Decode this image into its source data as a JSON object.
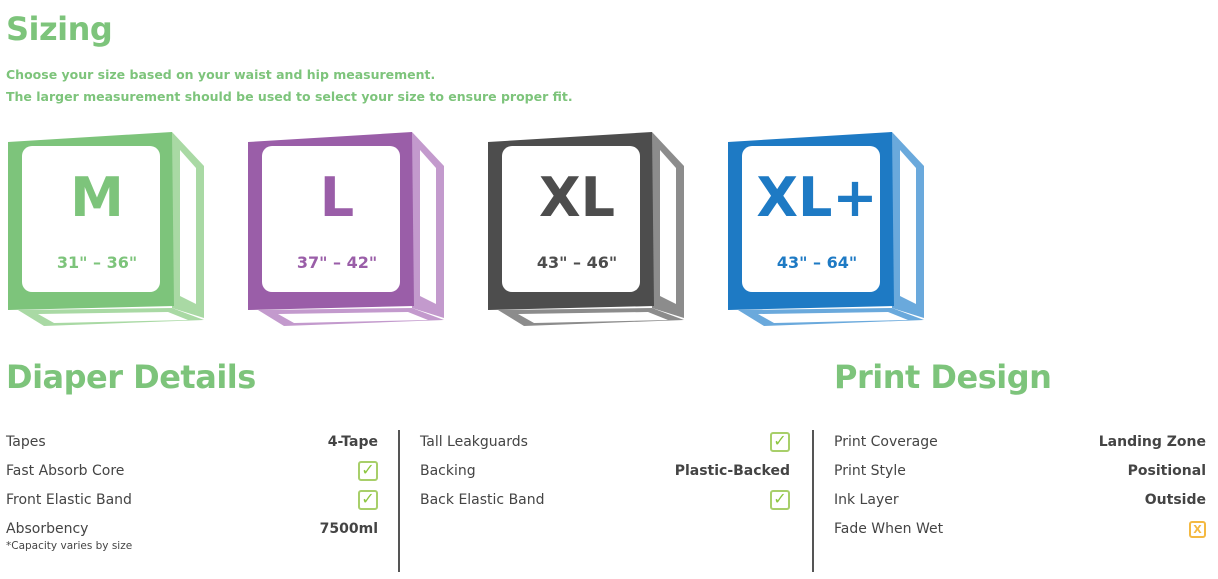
{
  "sizing": {
    "title": "Sizing",
    "line1": "Choose your size based on your waist and hip measurement.",
    "line2": "The larger measurement should be used to select your size to ensure proper fit.",
    "sizes": [
      {
        "label": "M",
        "range": "31\" – 36\"",
        "color": "#7dc47b",
        "light": "#a9d9a4"
      },
      {
        "label": "L",
        "range": "37\" – 42\"",
        "color": "#9a5ea8",
        "light": "#c39acd"
      },
      {
        "label": "XL",
        "range": "43\" – 46\"",
        "color": "#4d4d4d",
        "light": "#8c8c8c"
      },
      {
        "label": "XL+",
        "range": "43\" – 64\"",
        "color": "#1e7ac4",
        "light": "#6aa9dc"
      }
    ]
  },
  "details": {
    "title": "Diaper Details",
    "col1": [
      {
        "label": "Tapes",
        "value": "4-Tape"
      },
      {
        "label": "Fast Absorb Core",
        "check": true
      },
      {
        "label": "Front Elastic Band",
        "check": true
      },
      {
        "label": "Absorbency",
        "value": "7500ml"
      }
    ],
    "note": "*Capacity varies by size",
    "col2": [
      {
        "label": "Tall Leakguards",
        "check": true
      },
      {
        "label": "Backing",
        "value": "Plastic-Backed"
      },
      {
        "label": "Back Elastic Band",
        "check": true
      }
    ]
  },
  "print": {
    "title": "Print Design",
    "rows": [
      {
        "label": "Print Coverage",
        "value": "Landing Zone"
      },
      {
        "label": "Print Style",
        "value": "Positional"
      },
      {
        "label": "Ink Layer",
        "value": "Outside"
      },
      {
        "label": "Fade When Wet",
        "cross": true
      }
    ]
  }
}
